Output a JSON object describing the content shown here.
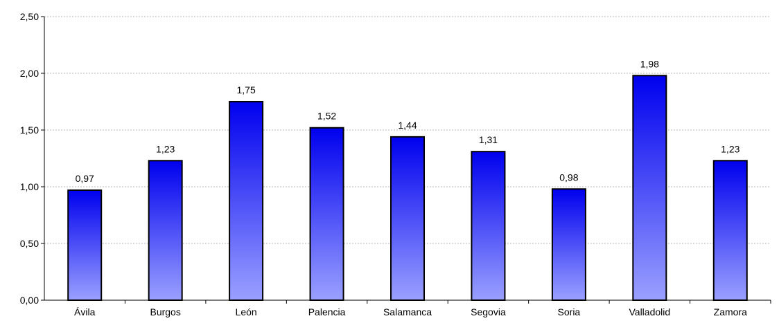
{
  "chart_data": {
    "type": "bar",
    "title": "",
    "xlabel": "",
    "ylabel": "",
    "categories": [
      "Ávila",
      "Burgos",
      "León",
      "Palencia",
      "Salamanca",
      "Segovia",
      "Soria",
      "Valladolid",
      "Zamora"
    ],
    "values": [
      0.97,
      1.23,
      1.75,
      1.52,
      1.44,
      1.31,
      0.98,
      1.98,
      1.23
    ],
    "data_labels": [
      "0,97",
      "1,23",
      "1,75",
      "1,52",
      "1,44",
      "1,31",
      "0,98",
      "1,98",
      "1,23"
    ],
    "ylim": [
      0,
      2.5
    ],
    "yticks": [
      0,
      0.5,
      1,
      1.5,
      2,
      2.5
    ],
    "ytick_labels": [
      "0,00",
      "0,50",
      "1,00",
      "1,50",
      "2,00",
      "2,50"
    ],
    "grid": true,
    "legend": "none",
    "colors": {
      "bar_top": "#0000ee",
      "bar_bottom": "#9aa0ff",
      "bar_outline": "#000000",
      "grid": "#b5b5b5",
      "axis": "#000000"
    }
  }
}
